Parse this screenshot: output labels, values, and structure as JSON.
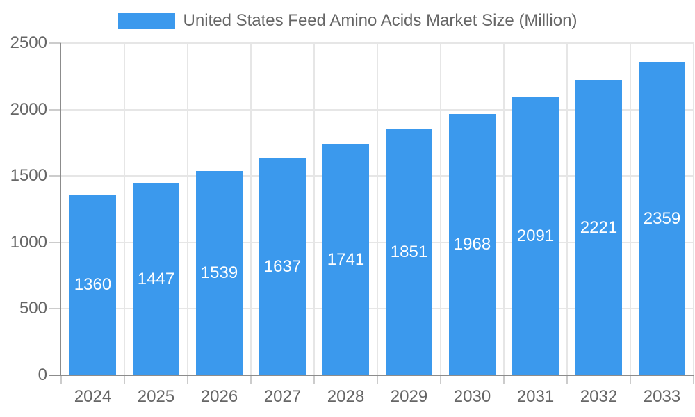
{
  "chart_data": {
    "type": "bar",
    "title": "United States Feed Amino Acids Market Size (Million)",
    "categories": [
      "2024",
      "2025",
      "2026",
      "2027",
      "2028",
      "2029",
      "2030",
      "2031",
      "2032",
      "2033"
    ],
    "values": [
      1360,
      1447,
      1539,
      1637,
      1741,
      1851,
      1968,
      2091,
      2221,
      2359
    ],
    "xlabel": "",
    "ylabel": "",
    "ylim": [
      0,
      2500
    ],
    "yticks": [
      0,
      500,
      1000,
      1500,
      2000,
      2500
    ],
    "grid": true,
    "legend_position": "top",
    "value_labels": "inside-bar-centered",
    "colors": {
      "bar": "#3B99ED",
      "value_label": "#FFFFFF",
      "grid": "#E6E6E6",
      "axis": "#8C8C8C",
      "tick": "#CCCCCC",
      "text": "#666666",
      "background": "#FFFFFF"
    }
  }
}
